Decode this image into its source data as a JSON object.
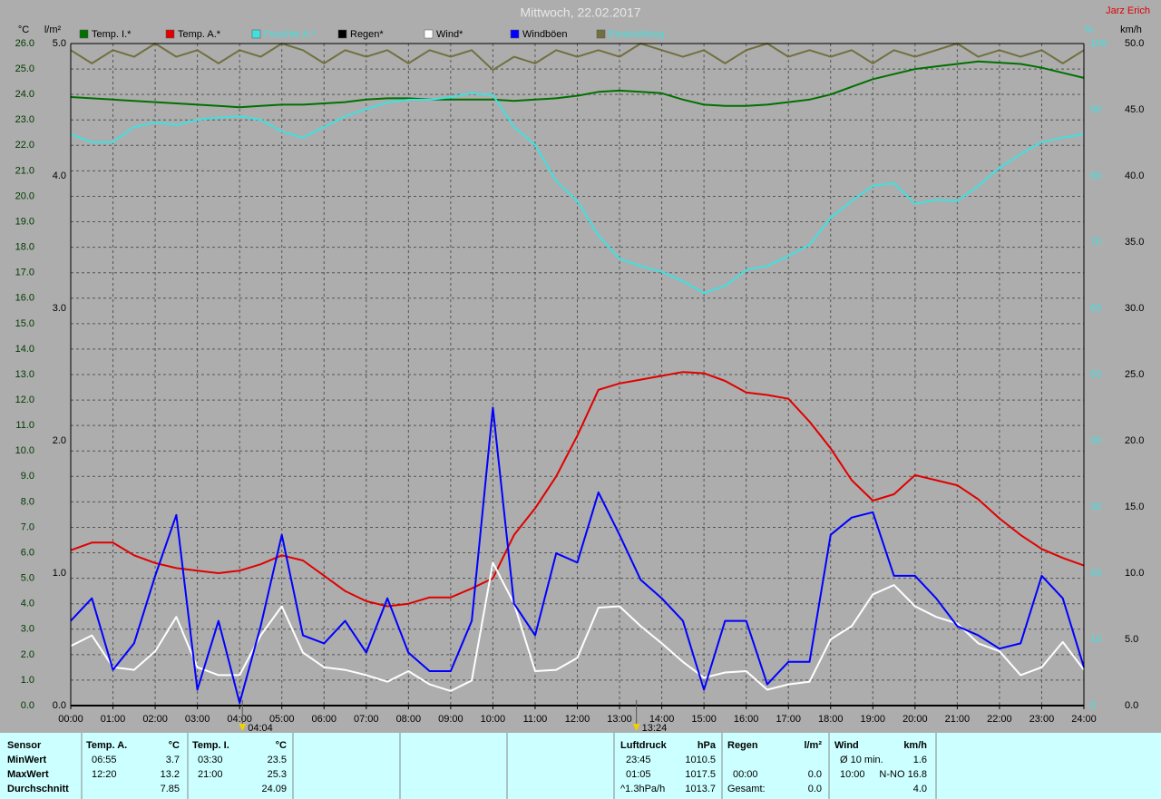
{
  "chart_data": {
    "type": "line",
    "title": "Mittwoch, 22.02.2017",
    "author": "Jarz Erich",
    "ylabel": "°C",
    "ylim": [
      0,
      26
    ],
    "yticks": [
      {
        "value": 0,
        "label": "0.0"
      },
      {
        "value": 1,
        "label": "1.0"
      },
      {
        "value": 2,
        "label": "2.0"
      },
      {
        "value": 3,
        "label": "3.0"
      },
      {
        "value": 4,
        "label": "4.0"
      },
      {
        "value": 5,
        "label": "5.0"
      },
      {
        "value": 6,
        "label": "6.0"
      },
      {
        "value": 7,
        "label": "7.0"
      },
      {
        "value": 8,
        "label": "8.0"
      },
      {
        "value": 9,
        "label": "9.0"
      },
      {
        "value": 10,
        "label": "10.0"
      },
      {
        "value": 11,
        "label": "11.0"
      },
      {
        "value": 12,
        "label": "12.0"
      },
      {
        "value": 13,
        "label": "13.0"
      },
      {
        "value": 14,
        "label": "14.0"
      },
      {
        "value": 15,
        "label": "15.0"
      },
      {
        "value": 16,
        "label": "16.0"
      },
      {
        "value": 17,
        "label": "17.0"
      },
      {
        "value": 18,
        "label": "18.0"
      },
      {
        "value": 19,
        "label": "19.0"
      },
      {
        "value": 20,
        "label": "20.0"
      },
      {
        "value": 21,
        "label": "21.0"
      },
      {
        "value": 22,
        "label": "22.0"
      },
      {
        "value": 23,
        "label": "23.0"
      },
      {
        "value": 24,
        "label": "24.0"
      },
      {
        "value": 25,
        "label": "25.0"
      },
      {
        "value": 26,
        "label": "26.0"
      }
    ],
    "y2label": "l/m²",
    "y2lim": [
      0,
      5
    ],
    "y2ticks": [
      {
        "value": 0,
        "label": "0.0"
      },
      {
        "value": 1,
        "label": "1.0"
      },
      {
        "value": 2,
        "label": "2.0"
      },
      {
        "value": 3,
        "label": "3.0"
      },
      {
        "value": 4,
        "label": "4.0"
      },
      {
        "value": 5,
        "label": "5.0"
      }
    ],
    "y3label": "%",
    "y3lim": [
      0,
      100
    ],
    "y3ticks": [
      0,
      10,
      20,
      30,
      40,
      50,
      60,
      70,
      80,
      90,
      100
    ],
    "y4label": "km/h",
    "y4lim": [
      0,
      50
    ],
    "y4ticks": [
      {
        "value": 0,
        "label": "0.0"
      },
      {
        "value": 5,
        "label": "5.0"
      },
      {
        "value": 10,
        "label": "10.0"
      },
      {
        "value": 15,
        "label": "15.0"
      },
      {
        "value": 20,
        "label": "20.0"
      },
      {
        "value": 25,
        "label": "25.0"
      },
      {
        "value": 30,
        "label": "30.0"
      },
      {
        "value": 35,
        "label": "35.0"
      },
      {
        "value": 40,
        "label": "40.0"
      },
      {
        "value": 45,
        "label": "45.0"
      },
      {
        "value": 50,
        "label": "50.0"
      }
    ],
    "xlim": [
      0,
      24
    ],
    "xticks": [
      {
        "value": 0,
        "label": "00:00"
      },
      {
        "value": 1,
        "label": "01:00"
      },
      {
        "value": 2,
        "label": "02:00"
      },
      {
        "value": 3,
        "label": "03:00"
      },
      {
        "value": 4,
        "label": "04:00"
      },
      {
        "value": 5,
        "label": "05:00"
      },
      {
        "value": 6,
        "label": "06:00"
      },
      {
        "value": 7,
        "label": "07:00"
      },
      {
        "value": 8,
        "label": "08:00"
      },
      {
        "value": 9,
        "label": "09:00"
      },
      {
        "value": 10,
        "label": "10:00"
      },
      {
        "value": 11,
        "label": "11:00"
      },
      {
        "value": 12,
        "label": "12:00"
      },
      {
        "value": 13,
        "label": "13:00"
      },
      {
        "value": 14,
        "label": "14:00"
      },
      {
        "value": 15,
        "label": "15:00"
      },
      {
        "value": 16,
        "label": "16:00"
      },
      {
        "value": 17,
        "label": "17:00"
      },
      {
        "value": 18,
        "label": "18:00"
      },
      {
        "value": 19,
        "label": "19:00"
      },
      {
        "value": 20,
        "label": "20:00"
      },
      {
        "value": 21,
        "label": "21:00"
      },
      {
        "value": 22,
        "label": "22:00"
      },
      {
        "value": 23,
        "label": "23:00"
      },
      {
        "value": 24,
        "label": "24:00"
      }
    ],
    "grid": true,
    "x": [
      0,
      0.5,
      1,
      1.5,
      2,
      2.5,
      3,
      3.5,
      4,
      4.5,
      5,
      5.5,
      6,
      6.5,
      7,
      7.5,
      8,
      8.5,
      9,
      9.5,
      10,
      10.5,
      11,
      11.5,
      12,
      12.5,
      13,
      13.5,
      14,
      14.5,
      15,
      15.5,
      16,
      16.5,
      17,
      17.5,
      18,
      18.5,
      19,
      19.5,
      20,
      20.5,
      21,
      21.5,
      22,
      22.5,
      23,
      23.5,
      24
    ],
    "series": [
      {
        "name": "Temp. I.*",
        "color": "#007000",
        "label_color": "#000000",
        "axis": "y",
        "values": [
          23.9,
          23.85,
          23.8,
          23.75,
          23.7,
          23.65,
          23.6,
          23.55,
          23.5,
          23.55,
          23.6,
          23.6,
          23.65,
          23.7,
          23.8,
          23.85,
          23.85,
          23.8,
          23.8,
          23.8,
          23.8,
          23.75,
          23.8,
          23.85,
          23.95,
          24.1,
          24.15,
          24.1,
          24.05,
          23.8,
          23.6,
          23.55,
          23.55,
          23.6,
          23.7,
          23.8,
          24.0,
          24.3,
          24.6,
          24.8,
          25.0,
          25.1,
          25.2,
          25.3,
          25.25,
          25.2,
          25.05,
          24.85,
          24.65
        ]
      },
      {
        "name": "Temp. A.*",
        "color": "#e00000",
        "label_color": "#000000",
        "axis": "y",
        "values": [
          6.1,
          6.4,
          6.4,
          5.9,
          5.6,
          5.4,
          5.3,
          5.2,
          5.3,
          5.55,
          5.9,
          5.7,
          5.1,
          4.5,
          4.1,
          3.9,
          4.0,
          4.25,
          4.25,
          4.6,
          5.0,
          6.7,
          7.75,
          9.0,
          10.6,
          12.4,
          12.65,
          12.8,
          12.95,
          13.1,
          13.05,
          12.75,
          12.3,
          12.2,
          12.05,
          11.15,
          10.1,
          8.85,
          8.05,
          8.3,
          9.05,
          8.85,
          8.65,
          8.1,
          7.35,
          6.7,
          6.15,
          5.8,
          5.5
        ]
      },
      {
        "name": "Feuchte A.*",
        "color": "#40e0e0",
        "label_color": "#40e0e0",
        "axis": "y3",
        "values": [
          86.3,
          85.1,
          85.1,
          87.4,
          88.1,
          87.7,
          88.5,
          88.8,
          89.0,
          88.5,
          86.7,
          85.8,
          87.4,
          89.0,
          90.1,
          91.1,
          91.5,
          91.5,
          91.9,
          92.5,
          92.2,
          87.4,
          84.7,
          79.2,
          76.2,
          71.0,
          67.5,
          66.4,
          65.5,
          64.1,
          62.3,
          63.4,
          65.8,
          66.4,
          67.9,
          69.6,
          73.7,
          76.2,
          78.5,
          78.9,
          75.8,
          76.4,
          76.2,
          78.5,
          81.2,
          83.3,
          85.1,
          85.8,
          86.3
        ]
      },
      {
        "name": "Regen*",
        "color": "#000000",
        "label_color": "#000000",
        "axis": "y2",
        "values": [
          0,
          0,
          0,
          0,
          0,
          0,
          0,
          0,
          0,
          0,
          0,
          0,
          0,
          0,
          0,
          0,
          0,
          0,
          0,
          0,
          0,
          0,
          0,
          0,
          0,
          0,
          0,
          0,
          0,
          0,
          0,
          0,
          0,
          0,
          0,
          0,
          0,
          0,
          0,
          0,
          0,
          0,
          0,
          0,
          0,
          0,
          0,
          0,
          0
        ]
      },
      {
        "name": "Wind*",
        "color": "#ffffff",
        "label_color": "#000000",
        "axis": "y4",
        "values": [
          4.5,
          5.3,
          2.9,
          2.7,
          4.1,
          6.7,
          2.9,
          2.3,
          2.3,
          5.3,
          7.5,
          4.0,
          2.9,
          2.7,
          2.3,
          1.8,
          2.6,
          1.6,
          1.1,
          1.9,
          10.8,
          7.7,
          2.6,
          2.7,
          3.6,
          7.4,
          7.5,
          6.0,
          4.7,
          3.3,
          2.1,
          2.5,
          2.6,
          1.2,
          1.6,
          1.8,
          5.0,
          6.0,
          8.4,
          9.1,
          7.5,
          6.7,
          6.2,
          4.7,
          4.1,
          2.3,
          2.9,
          4.8,
          2.7
        ]
      },
      {
        "name": "Windböen",
        "color": "#0000ff",
        "label_color": "#000000",
        "axis": "y4",
        "values": [
          6.4,
          8.1,
          2.7,
          4.7,
          9.8,
          14.4,
          1.2,
          6.4,
          0.2,
          6.0,
          12.9,
          5.3,
          4.7,
          6.4,
          4.0,
          8.1,
          4.0,
          2.6,
          2.6,
          6.4,
          22.5,
          7.7,
          5.3,
          11.5,
          10.8,
          16.1,
          12.9,
          9.5,
          8.1,
          6.4,
          1.2,
          6.4,
          6.4,
          1.6,
          3.3,
          3.3,
          12.9,
          14.2,
          14.6,
          9.8,
          9.8,
          8.1,
          6.0,
          5.3,
          4.3,
          4.7,
          9.8,
          8.1,
          2.9
        ]
      },
      {
        "name": "Einstrahlung",
        "color": "#707040",
        "label_color": "#40e0e0",
        "axis": "y3",
        "values": [
          99,
          97,
          99,
          98,
          100,
          98,
          99,
          97,
          99,
          98,
          100,
          99,
          97,
          99,
          98,
          99,
          97,
          99,
          98,
          99,
          96,
          98,
          97,
          99,
          98,
          99,
          98,
          100,
          99,
          98,
          99,
          97,
          99,
          100,
          98,
          99,
          98,
          99,
          97,
          99,
          98,
          99,
          100,
          98,
          99,
          98,
          99,
          97,
          99
        ]
      }
    ],
    "annotations": [
      {
        "x": 4.0667,
        "label": "04:04"
      },
      {
        "x": 13.4,
        "label": "13:24"
      }
    ]
  },
  "summary": {
    "row_labels": [
      "Sensor",
      "MinWert",
      "MaxWert",
      "Durchschnitt"
    ],
    "temp_a": {
      "title": "Temp. A.",
      "unit": "°C",
      "min_time": "06:55",
      "min": "3.7",
      "max_time": "12:20",
      "max": "13.2",
      "avg": "7.85"
    },
    "temp_i": {
      "title": "Temp. I.",
      "unit": "°C",
      "min_time": "03:30",
      "min": "23.5",
      "max_time": "21:00",
      "max": "25.3",
      "avg": "24.09"
    },
    "pressure": {
      "title": "Luftdruck",
      "unit": "hPa",
      "min_time": "23:45",
      "min": "1010.5",
      "max_time": "01:05",
      "max": "1017.5",
      "trend": "^1.3hPa/h",
      "avg": "1013.7"
    },
    "rain": {
      "title": "Regen",
      "unit": "l/m²",
      "max_time": "00:00",
      "max": "0.0",
      "total_label": "Gesamt:",
      "total": "0.0"
    },
    "wind": {
      "title": "Wind",
      "unit": "km/h",
      "avg10_label": "Ø 10 min.",
      "avg10": "1.6",
      "max_time": "10:00",
      "max": "N-NO 16.8",
      "avg": "4.0"
    }
  }
}
